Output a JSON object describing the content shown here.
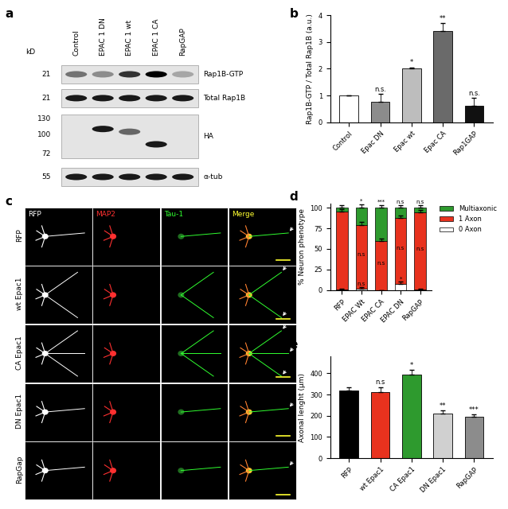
{
  "blot": {
    "panel": "a",
    "unit": "kD",
    "lanes": [
      "Control",
      "EPAC 1 DN",
      "EPAC 1 wt",
      "EPAC 1 CA",
      "RapGAP"
    ],
    "rows": [
      {
        "label": "Rap1B-GTP",
        "markers": [
          21
        ],
        "intensity": [
          0.55,
          0.45,
          0.8,
          1.0,
          0.35
        ]
      },
      {
        "label": "Total Rap1B",
        "markers": [
          21
        ],
        "intensity": [
          0.9,
          0.9,
          0.9,
          0.9,
          0.9
        ]
      },
      {
        "label": "HA",
        "markers": [
          130,
          100,
          72
        ],
        "intensity": [
          0,
          0.9,
          0.6,
          0.9,
          0
        ],
        "band_kd": [
          null,
          110,
          105,
          85,
          null
        ]
      },
      {
        "label": "α-tub",
        "markers": [
          55
        ],
        "intensity": [
          0.9,
          0.9,
          0.9,
          0.9,
          0.9
        ]
      }
    ]
  },
  "micrographs": {
    "panel": "c",
    "columns": [
      "RFP",
      "MAP2",
      "Tau-1",
      "Merge"
    ],
    "column_colors": [
      "#ffffff",
      "#ff3030",
      "#30ff30",
      "#ffff30"
    ],
    "rows": [
      "RFP",
      "wt Epac1",
      "CA Epac1",
      "DN Epac1",
      "RapGap"
    ],
    "arrows": [
      1,
      2,
      3,
      1,
      1
    ]
  },
  "chart_data": [
    {
      "panel": "b",
      "type": "bar",
      "categories": [
        "Control",
        "Epac DN",
        "Epac wt",
        "Epac CA",
        "Rap1GAP"
      ],
      "values": [
        1.0,
        0.75,
        2.0,
        3.4,
        0.6
      ],
      "errors": [
        0,
        0.3,
        0.05,
        0.3,
        0.3
      ],
      "significance": [
        null,
        "n.s.",
        "*",
        "**",
        "n.s."
      ],
      "colors": [
        "#ffffff",
        "#8c8c8c",
        "#bdbdbd",
        "#6a6a6a",
        "#111111"
      ],
      "y_label": "Rap1B-GTP / Total Rap1B (a.u.)",
      "ylim": [
        0,
        4
      ],
      "yticks": [
        0,
        1,
        2,
        3,
        4
      ]
    },
    {
      "panel": "d",
      "type": "bar",
      "stacked": true,
      "categories": [
        "RFP",
        "EPAC Wt",
        "EPAC CA",
        "EPAC DN",
        "RapGAP"
      ],
      "series": [
        {
          "name": "0 Axon",
          "color": "#ffffff",
          "values": [
            1,
            2,
            0,
            8,
            1
          ],
          "errors": [
            1,
            2,
            0,
            2,
            1
          ],
          "significance": [
            null,
            "n.s",
            null,
            "*",
            null
          ]
        },
        {
          "name": "1 Axon",
          "color": "#e8321e",
          "values": [
            94,
            77,
            60,
            80,
            93
          ],
          "errors": [
            3,
            4,
            3,
            3,
            3
          ],
          "significance": [
            null,
            "n.s",
            "n.s",
            "n.s",
            "n.s"
          ]
        },
        {
          "name": "Multiaxonic",
          "color": "#2e9a2e",
          "values": [
            5,
            21,
            40,
            12,
            6
          ],
          "errors": [
            3,
            4,
            3,
            3,
            3
          ],
          "significance": [
            null,
            "*",
            "***",
            "n.s",
            "n.s"
          ]
        }
      ],
      "legend": "upper left",
      "y_label": "% Neuron phenotype",
      "ylim": [
        0,
        105
      ],
      "yticks": [
        0,
        25,
        50,
        75,
        100
      ]
    },
    {
      "panel": "e",
      "type": "bar",
      "categories": [
        "RFP",
        "wt Epac1",
        "CA Epac1",
        "DN Epac1",
        "RapGAP"
      ],
      "values": [
        320,
        310,
        395,
        210,
        195
      ],
      "errors": [
        12,
        25,
        20,
        15,
        12
      ],
      "significance": [
        null,
        "n.s",
        "*",
        "**",
        "***"
      ],
      "colors": [
        "#000000",
        "#e8321e",
        "#2e9a2e",
        "#d0d0d0",
        "#8c8c8c"
      ],
      "y_label": "Axonal lenght (µm)",
      "ylim": [
        0,
        480
      ],
      "yticks": [
        0,
        100,
        200,
        300,
        400
      ]
    }
  ]
}
